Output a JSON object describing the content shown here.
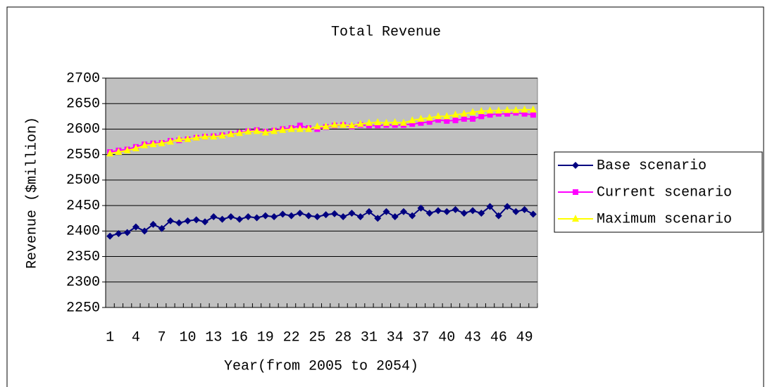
{
  "chart_data": {
    "type": "line",
    "title": "Total Revenue",
    "x_label": "Year(from 2005 to 2054)",
    "y_label": "Revenue ($million)",
    "categories": [
      1,
      null,
      null,
      4,
      null,
      null,
      7,
      null,
      null,
      10,
      null,
      null,
      13,
      null,
      null,
      16,
      null,
      null,
      19,
      null,
      null,
      22,
      null,
      null,
      25,
      null,
      null,
      28,
      null,
      null,
      31,
      null,
      null,
      34,
      null,
      null,
      37,
      null,
      null,
      40,
      null,
      null,
      43,
      null,
      null,
      46,
      null,
      null,
      49,
      null
    ],
    "ylim": [
      2250,
      2700
    ],
    "yticks": [
      2250,
      2300,
      2350,
      2400,
      2450,
      2500,
      2550,
      2600,
      2650,
      2700
    ],
    "grid": true,
    "legend": "right",
    "series": [
      {
        "name": "Base scenario",
        "color": "#000080",
        "marker": "diamond",
        "values": [
          2390,
          2395,
          2397,
          2408,
          2400,
          2413,
          2405,
          2420,
          2416,
          2420,
          2422,
          2418,
          2428,
          2423,
          2428,
          2423,
          2428,
          2426,
          2430,
          2428,
          2433,
          2430,
          2435,
          2430,
          2428,
          2432,
          2434,
          2428,
          2435,
          2428,
          2438,
          2425,
          2438,
          2428,
          2438,
          2430,
          2445,
          2435,
          2440,
          2438,
          2442,
          2435,
          2440,
          2435,
          2448,
          2430,
          2448,
          2438,
          2442,
          2433
        ]
      },
      {
        "name": "Current scenario",
        "color": "#ff00ff",
        "marker": "square",
        "values": [
          2555,
          2558,
          2560,
          2565,
          2570,
          2572,
          2573,
          2577,
          2578,
          2580,
          2583,
          2585,
          2586,
          2588,
          2590,
          2593,
          2596,
          2598,
          2595,
          2597,
          2600,
          2602,
          2607,
          2602,
          2600,
          2604,
          2607,
          2608,
          2605,
          2608,
          2607,
          2607,
          2608,
          2608,
          2608,
          2610,
          2612,
          2614,
          2618,
          2616,
          2617,
          2620,
          2620,
          2625,
          2628,
          2630,
          2630,
          2632,
          2630,
          2628
        ]
      },
      {
        "name": "Maximum scenario",
        "color": "#ffff00",
        "marker": "triangle",
        "values": [
          2552,
          2555,
          2558,
          2562,
          2568,
          2570,
          2572,
          2575,
          2580,
          2580,
          2583,
          2585,
          2585,
          2587,
          2590,
          2592,
          2595,
          2596,
          2593,
          2596,
          2598,
          2600,
          2600,
          2600,
          2605,
          2605,
          2608,
          2608,
          2607,
          2610,
          2612,
          2613,
          2612,
          2613,
          2612,
          2617,
          2620,
          2622,
          2625,
          2625,
          2628,
          2630,
          2633,
          2635,
          2636,
          2636,
          2637,
          2637,
          2638,
          2638
        ]
      }
    ]
  }
}
